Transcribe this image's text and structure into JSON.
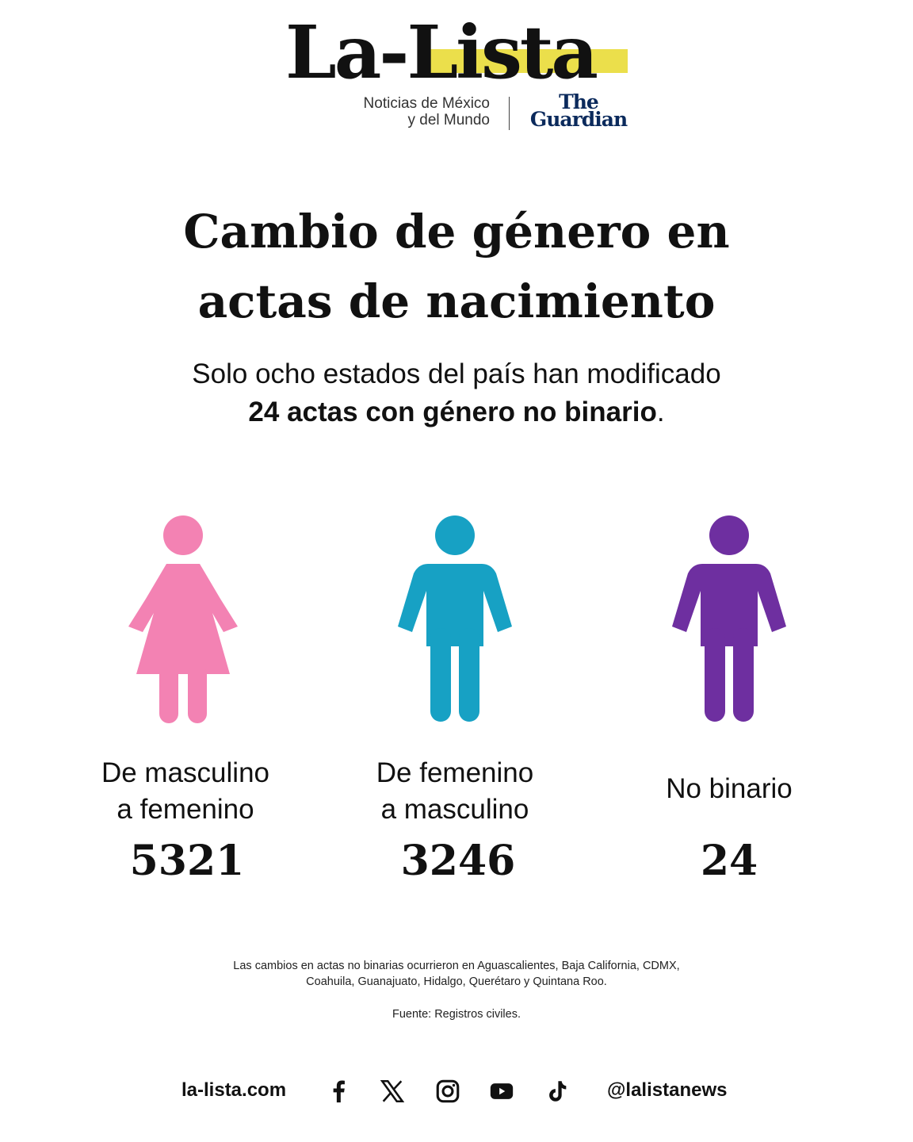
{
  "header": {
    "logo": "La-Lista",
    "tagline_line1": "Noticias de México",
    "tagline_line2": "y del Mundo",
    "partner_line1": "The",
    "partner_line2": "Guardian"
  },
  "title_line1": "Cambio de género en",
  "title_line2": "actas de nacimiento",
  "subtitle_line1": "Solo ocho estados del país han modificado",
  "subtitle_bold": "24 actas con género no binario",
  "subtitle_end": ".",
  "categories": [
    {
      "label_line1": "De masculino",
      "label_line2": "a femenino",
      "value": "5321",
      "color": "#f382b3",
      "icon": "female-figure-icon"
    },
    {
      "label_line1": "De femenino",
      "label_line2": "a masculino",
      "value": "3246",
      "color": "#17a1c4",
      "icon": "male-figure-icon"
    },
    {
      "label_line1": "No binario",
      "label_line2": "",
      "value": "24",
      "color": "#6e2fa0",
      "icon": "person-figure-icon"
    }
  ],
  "note_line1": "Las cambios en actas no binarias ocurrieron en Aguascalientes, Baja California, CDMX,",
  "note_line2": "Coahuila, Guanajuato, Hidalgo, Querétaro y Quintana Roo.",
  "source": "Fuente: Registros civiles.",
  "footer": {
    "website": "la-lista.com",
    "handle": "@lalistanews"
  }
}
